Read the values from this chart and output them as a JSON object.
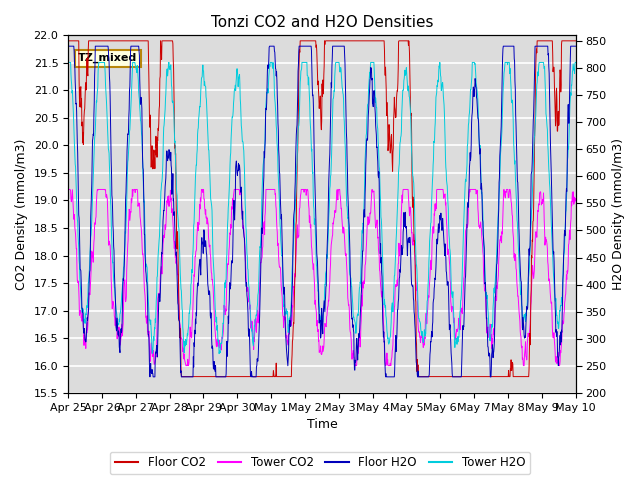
{
  "title": "Tonzi CO2 and H2O Densities",
  "xlabel": "Time",
  "ylabel_left": "CO2 Density (mmol/m3)",
  "ylabel_right": "H2O Density (mmol/m3)",
  "annotation": "TZ_mixed",
  "ylim_left": [
    15.5,
    22.0
  ],
  "ylim_right": [
    200,
    860
  ],
  "yticks_left": [
    15.5,
    16.0,
    16.5,
    17.0,
    17.5,
    18.0,
    18.5,
    19.0,
    19.5,
    20.0,
    20.5,
    21.0,
    21.5,
    22.0
  ],
  "yticks_right": [
    200,
    250,
    300,
    350,
    400,
    450,
    500,
    550,
    600,
    650,
    700,
    750,
    800,
    850
  ],
  "xtick_labels": [
    "Apr 25",
    "Apr 26",
    "Apr 27",
    "Apr 28",
    "Apr 29",
    "Apr 30",
    "May 1",
    "May 2",
    "May 3",
    "May 4",
    "May 5",
    "May 6",
    "May 7",
    "May 8",
    "May 9",
    "May 10"
  ],
  "colors": {
    "floor_co2": "#CC0000",
    "tower_co2": "#FF00FF",
    "floor_h2o": "#0000BB",
    "tower_h2o": "#00CCDD"
  },
  "legend_labels": [
    "Floor CO2",
    "Tower CO2",
    "Floor H2O",
    "Tower H2O"
  ],
  "background_color": "#DCDCDC",
  "grid_color": "#FFFFFF",
  "title_fontsize": 11,
  "label_fontsize": 9,
  "tick_fontsize": 8
}
